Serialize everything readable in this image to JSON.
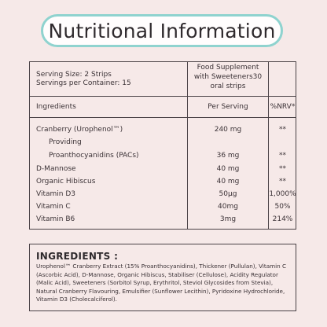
{
  "title": "Nutritional Information",
  "table": {
    "serving_size": "Serving Size: 2 Strips",
    "servings_per_container": "Servings per Container: 15",
    "food_supplement_line1": "Food Supplement",
    "food_supplement_line2": "with Sweeteners30",
    "food_supplement_line3": "oral strips",
    "headers": {
      "ingredients": "Ingredients",
      "per_serving": "Per Serving",
      "nrv": "%NRV*"
    },
    "rows": [
      {
        "name": "Cranberry (Urophenol™)",
        "amount": "240 mg",
        "nrv": "**"
      },
      {
        "name": "Providing",
        "amount": "",
        "nrv": ""
      },
      {
        "name": "Proanthocyanidins (PACs)",
        "amount": "36 mg",
        "nrv": "**"
      },
      {
        "name": "D-Mannose",
        "amount": "40 mg",
        "nrv": "**"
      },
      {
        "name": "Organic Hibiscus",
        "amount": "40 mg",
        "nrv": "**"
      },
      {
        "name": "Vitamin D3",
        "amount": "50µg",
        "nrv": "1,000%"
      },
      {
        "name": "Vitamin C",
        "amount": "40mg",
        "nrv": "50%"
      },
      {
        "name": "Vitamin B6",
        "amount": "3mg",
        "nrv": "214%"
      }
    ]
  },
  "ingredients": {
    "heading": "INGREDIENTS :",
    "text": "Urophenol™ Cranberry Extract (15% Proanthocyanidins), Thickener (Pullulan), Vitamin C (Ascorbic Acid), D-Mannose, Organic Hibiscus, Stabiliser (Cellulose), Acidity Regulator (Malic Acid), Sweeteners (Sorbitol Syrup, Erythritol, Steviol Glycosides from Stevia), Natural Cranberry Flavouring, Emulsifier (Sunflower Lecithin), Pyridoxine Hydrochloride, Vitamin D3 (Cholecalciferol)."
  }
}
